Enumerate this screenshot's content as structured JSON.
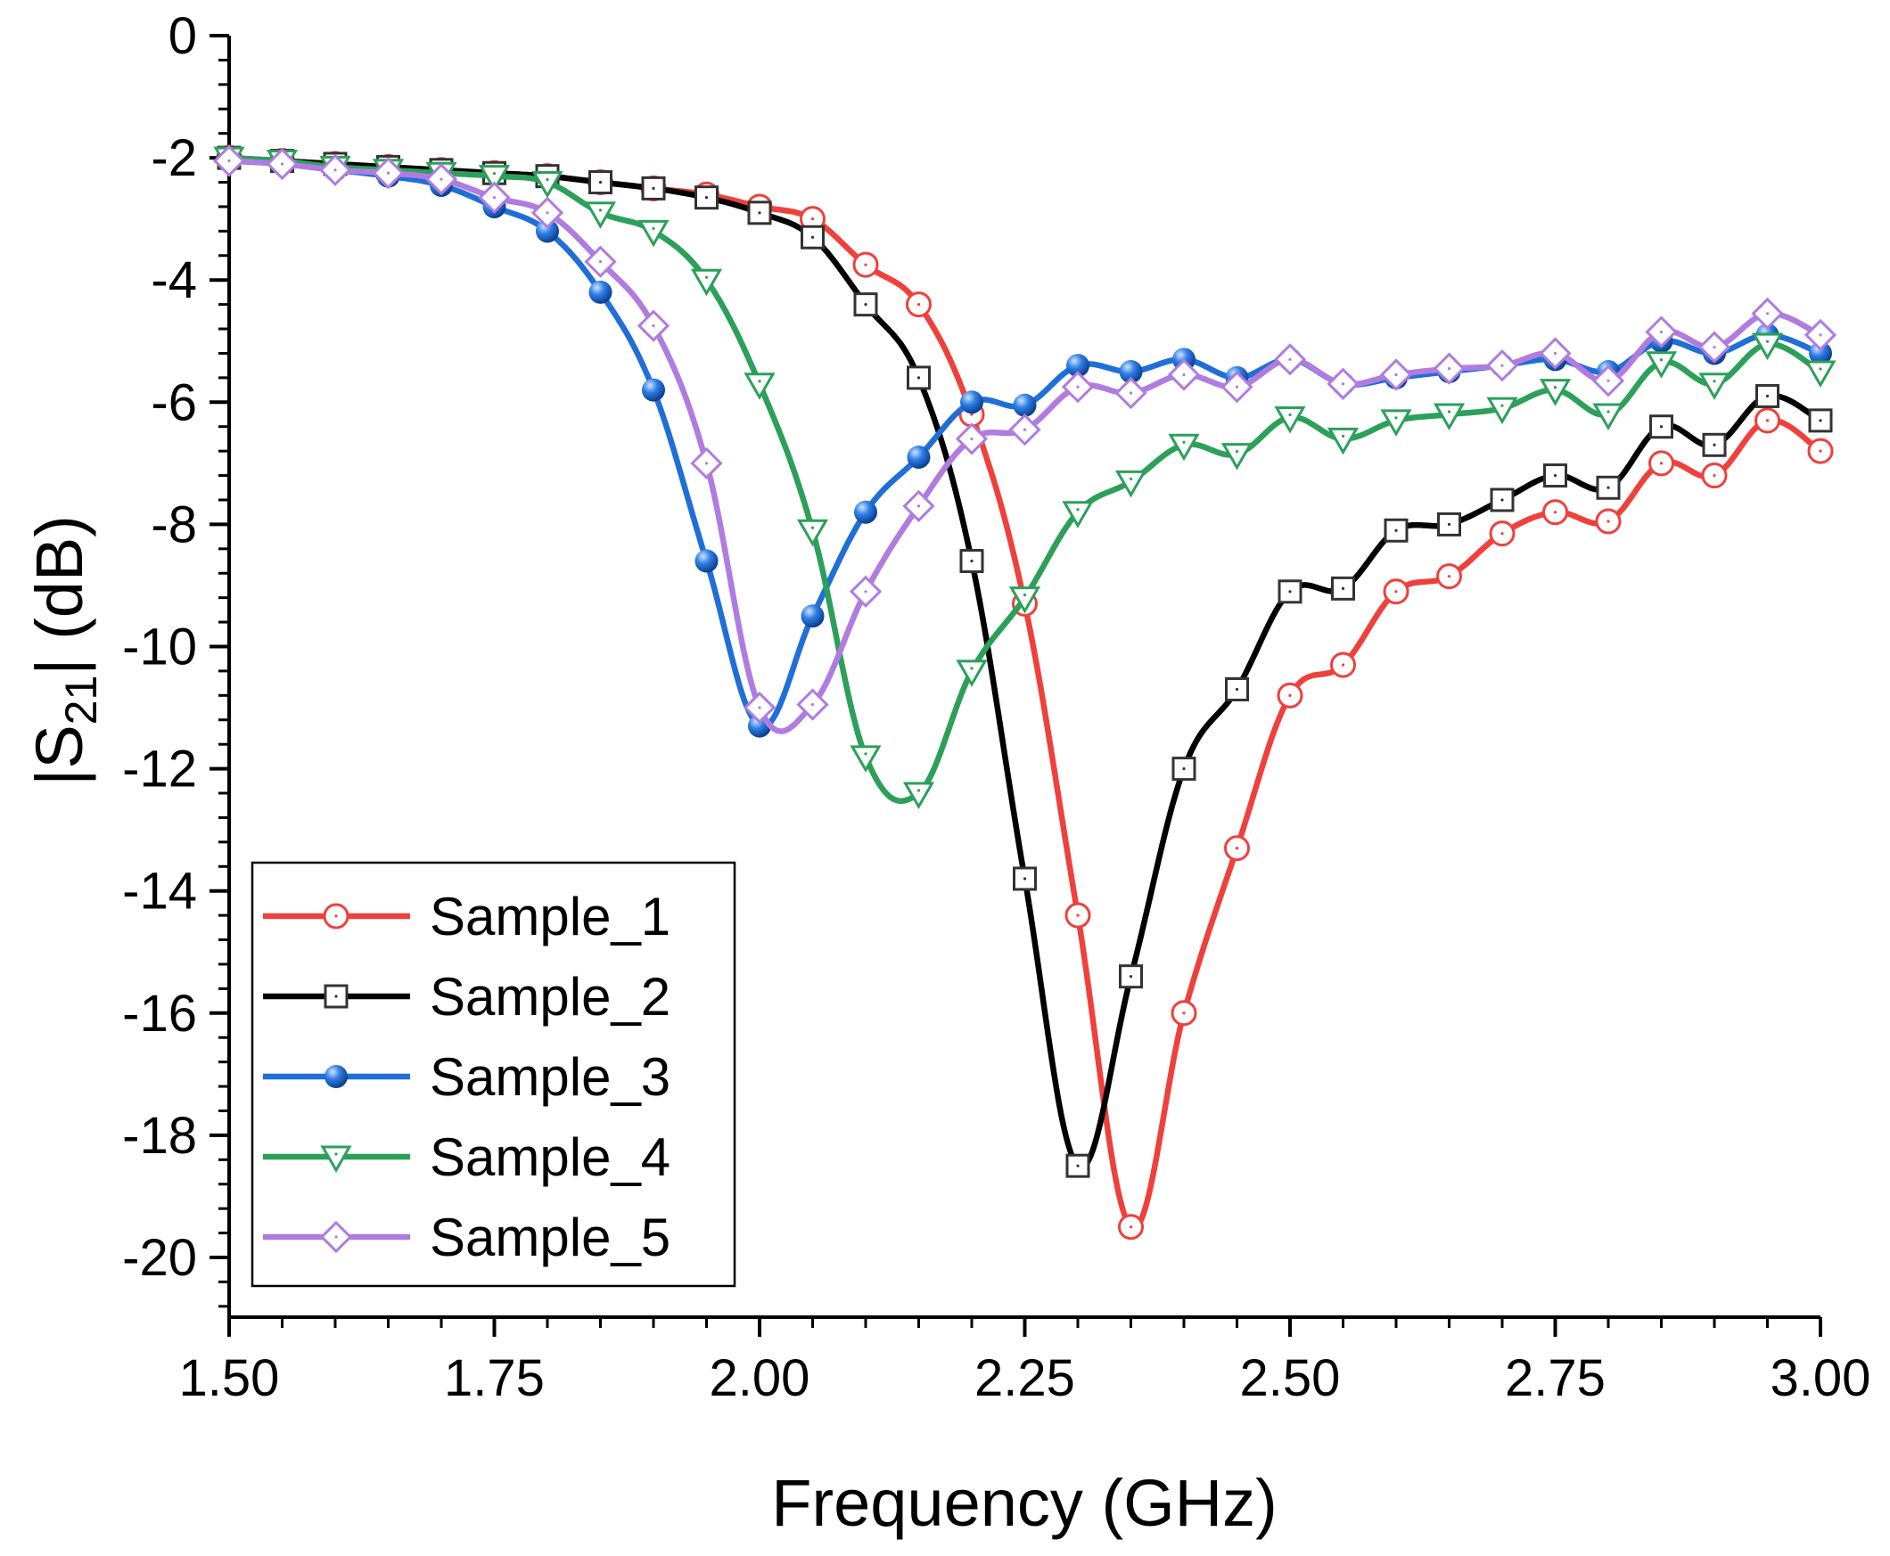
{
  "chart_data": {
    "type": "line",
    "xlabel": "Frequency (GHz)",
    "ylabel_parts": {
      "pre": "|S",
      "sub": "21",
      "post": "| (dB)"
    },
    "xlim": [
      1.5,
      3.0
    ],
    "ylim": [
      -21,
      0
    ],
    "xticks": [
      1.5,
      1.75,
      2.0,
      2.25,
      2.5,
      2.75,
      3.0
    ],
    "xtick_labels": [
      "1.50",
      "1.75",
      "2.00",
      "2.25",
      "2.50",
      "2.75",
      "3.00"
    ],
    "yticks": [
      0,
      -2,
      -4,
      -6,
      -8,
      -10,
      -12,
      -14,
      -16,
      -18,
      -20
    ],
    "ytick_labels": [
      "0",
      "-2",
      "-4",
      "-6",
      "-8",
      "-10",
      "-12",
      "-14",
      "-16",
      "-18",
      "-20"
    ],
    "grid": false,
    "legend_position": "bottom-left",
    "x": [
      1.5,
      1.55,
      1.6,
      1.65,
      1.7,
      1.75,
      1.8,
      1.85,
      1.9,
      1.95,
      2.0,
      2.05,
      2.1,
      2.15,
      2.2,
      2.25,
      2.3,
      2.35,
      2.4,
      2.45,
      2.5,
      2.55,
      2.6,
      2.65,
      2.7,
      2.75,
      2.8,
      2.85,
      2.9,
      2.95,
      3.0
    ],
    "series": [
      {
        "name": "Sample_1",
        "color": "#f0403c",
        "marker": "circle-open",
        "values": [
          -2.0,
          -2.05,
          -2.1,
          -2.15,
          -2.2,
          -2.25,
          -2.3,
          -2.4,
          -2.5,
          -2.6,
          -2.8,
          -3.0,
          -3.75,
          -4.4,
          -6.2,
          -9.3,
          -14.4,
          -19.5,
          -16.0,
          -13.3,
          -10.8,
          -10.3,
          -9.1,
          -8.85,
          -8.15,
          -7.8,
          -7.95,
          -7.0,
          -7.2,
          -6.3,
          -6.8
        ]
      },
      {
        "name": "Sample_2",
        "color": "#000000",
        "marker": "square-open",
        "values": [
          -2.0,
          -2.05,
          -2.1,
          -2.15,
          -2.2,
          -2.25,
          -2.3,
          -2.4,
          -2.5,
          -2.65,
          -2.9,
          -3.3,
          -4.4,
          -5.6,
          -8.6,
          -13.8,
          -18.5,
          -15.4,
          -12.0,
          -10.7,
          -9.1,
          -9.05,
          -8.1,
          -8.0,
          -7.6,
          -7.2,
          -7.4,
          -6.4,
          -6.7,
          -5.9,
          -6.3
        ]
      },
      {
        "name": "Sample_3",
        "color": "#1f6fd6",
        "marker": "sphere",
        "values": [
          -2.05,
          -2.1,
          -2.2,
          -2.3,
          -2.45,
          -2.8,
          -3.2,
          -4.2,
          -5.8,
          -8.6,
          -11.3,
          -9.5,
          -7.8,
          -6.9,
          -6.0,
          -6.05,
          -5.4,
          -5.5,
          -5.3,
          -5.6,
          -5.3,
          -5.7,
          -5.6,
          -5.5,
          -5.4,
          -5.3,
          -5.5,
          -5.0,
          -5.2,
          -4.9,
          -5.2
        ]
      },
      {
        "name": "Sample_4",
        "color": "#2ca05a",
        "marker": "triangle-down-open",
        "values": [
          -2.0,
          -2.05,
          -2.15,
          -2.2,
          -2.25,
          -2.3,
          -2.4,
          -2.9,
          -3.2,
          -4.0,
          -5.7,
          -8.1,
          -11.8,
          -12.4,
          -10.4,
          -9.2,
          -7.8,
          -7.3,
          -6.7,
          -6.85,
          -6.25,
          -6.6,
          -6.3,
          -6.2,
          -6.1,
          -5.8,
          -6.2,
          -5.35,
          -5.7,
          -5.05,
          -5.5
        ]
      },
      {
        "name": "Sample_5",
        "color": "#b07ce0",
        "marker": "diamond-open",
        "values": [
          -2.05,
          -2.1,
          -2.2,
          -2.25,
          -2.35,
          -2.65,
          -2.9,
          -3.7,
          -4.75,
          -7.0,
          -11.0,
          -10.95,
          -9.1,
          -7.7,
          -6.6,
          -6.45,
          -5.75,
          -5.85,
          -5.55,
          -5.75,
          -5.3,
          -5.7,
          -5.55,
          -5.45,
          -5.4,
          -5.2,
          -5.65,
          -4.85,
          -5.1,
          -4.55,
          -4.9
        ]
      }
    ]
  }
}
